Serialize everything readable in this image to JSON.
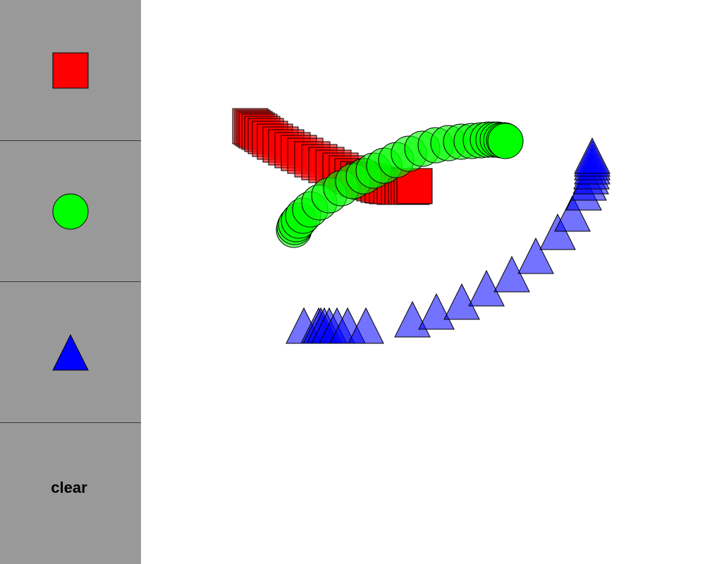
{
  "toolbar": {
    "tools": [
      {
        "name": "square",
        "icon": "square-icon",
        "color": "#ff0000"
      },
      {
        "name": "circle",
        "icon": "circle-icon",
        "color": "#00ff00"
      },
      {
        "name": "triangle",
        "icon": "triangle-icon",
        "color": "#0000ff"
      }
    ],
    "clear_label": "clear",
    "background": "#999999"
  },
  "canvas": {
    "background": "#ffffff",
    "colors": {
      "square": "#ff0000",
      "circle": "#00ff00",
      "triangle": "#0000ff"
    }
  }
}
